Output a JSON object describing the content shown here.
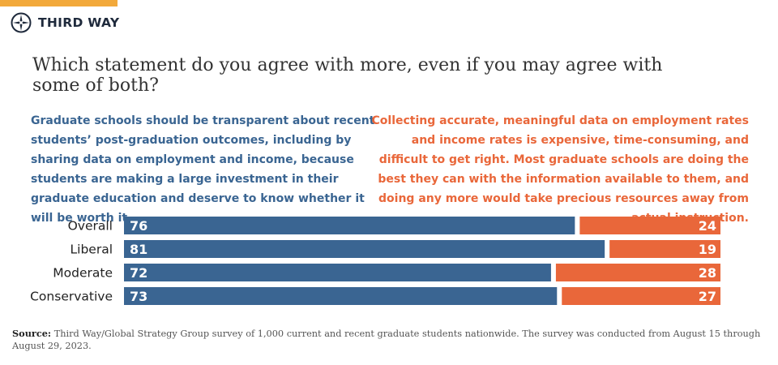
{
  "brand": {
    "name": "THIRD WAY",
    "accent_color": "#f2a93b",
    "logo_icon": "compass-star-icon"
  },
  "question": "Which statement do you agree with more, even if you may agree with some of both?",
  "statements": {
    "left": "Graduate schools should be transparent about recent students’ post-graduation outcomes, including by sharing data on employment and income, because students are making a large investment in their graduate education and deserve to know whether it will be worth it.",
    "right": "Collecting accurate, meaningful data on employment rates and income rates is expensive, time-consuming, and difficult to get right. Most graduate schools are doing the best they can with the information available to them, and doing  any more would take precious resources away from actual instruction."
  },
  "chart_data": {
    "type": "bar",
    "orientation": "horizontal-diverging",
    "categories": [
      "Overall",
      "Liberal",
      "Moderate",
      "Conservative"
    ],
    "series": [
      {
        "name": "Graduate schools should be transparent",
        "color": "#3a6592",
        "values": [
          76,
          81,
          72,
          73
        ]
      },
      {
        "name": "Collecting data is expensive",
        "color": "#e9673a",
        "values": [
          24,
          19,
          28,
          27
        ]
      }
    ],
    "xlim": [
      0,
      100
    ]
  },
  "source": {
    "label": "Source:",
    "text": "Third Way/Global Strategy Group survey of 1,000 current and recent graduate students nationwide. The survey was conducted from August 15 through August 29, 2023."
  }
}
